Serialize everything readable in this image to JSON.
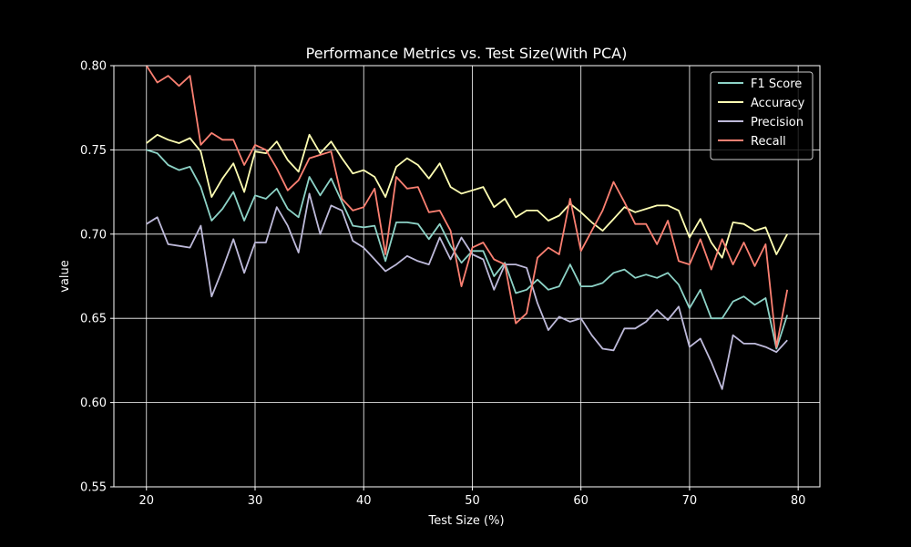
{
  "chart_data": {
    "type": "line",
    "title": "Performance Metrics vs. Test Size(With PCA)",
    "xlabel": "Test Size (%)",
    "ylabel": "value",
    "xlim": [
      17,
      82
    ],
    "ylim": [
      0.55,
      0.8
    ],
    "x_ticks": [
      20,
      30,
      40,
      50,
      60,
      70,
      80
    ],
    "y_ticks": [
      0.55,
      0.6,
      0.65,
      0.7,
      0.75,
      0.8
    ],
    "x_tick_labels": [
      "20",
      "30",
      "40",
      "50",
      "60",
      "70",
      "80"
    ],
    "y_tick_labels": [
      "0.55",
      "0.60",
      "0.65",
      "0.70",
      "0.75",
      "0.80"
    ],
    "grid": true,
    "legend_position": "top-right",
    "x": [
      20,
      21,
      22,
      23,
      24,
      25,
      26,
      27,
      28,
      29,
      30,
      31,
      32,
      33,
      34,
      35,
      36,
      37,
      38,
      39,
      40,
      41,
      42,
      43,
      44,
      45,
      46,
      47,
      48,
      49,
      50,
      51,
      52,
      53,
      54,
      55,
      56,
      57,
      58,
      59,
      60,
      61,
      62,
      63,
      64,
      65,
      66,
      67,
      68,
      69,
      70,
      71,
      72,
      73,
      74,
      75,
      76,
      77,
      78,
      79
    ],
    "series": [
      {
        "name": "F1 Score",
        "color": "#8dd3c7",
        "values": [
          0.75,
          0.748,
          0.741,
          0.738,
          0.74,
          0.728,
          0.708,
          0.715,
          0.725,
          0.708,
          0.723,
          0.721,
          0.727,
          0.715,
          0.71,
          0.734,
          0.723,
          0.733,
          0.719,
          0.705,
          0.704,
          0.705,
          0.684,
          0.707,
          0.707,
          0.706,
          0.697,
          0.706,
          0.693,
          0.683,
          0.69,
          0.69,
          0.675,
          0.683,
          0.665,
          0.667,
          0.673,
          0.667,
          0.669,
          0.682,
          0.669,
          0.669,
          0.671,
          0.677,
          0.679,
          0.674,
          0.676,
          0.674,
          0.677,
          0.67,
          0.656,
          0.667,
          0.65,
          0.65,
          0.66,
          0.663,
          0.658,
          0.662,
          0.632,
          0.652
        ]
      },
      {
        "name": "Accuracy",
        "color": "#ffffb3",
        "values": [
          0.754,
          0.759,
          0.756,
          0.754,
          0.757,
          0.749,
          0.722,
          0.733,
          0.742,
          0.725,
          0.749,
          0.748,
          0.755,
          0.744,
          0.737,
          0.759,
          0.748,
          0.755,
          0.745,
          0.736,
          0.738,
          0.734,
          0.722,
          0.74,
          0.745,
          0.741,
          0.733,
          0.742,
          0.728,
          0.724,
          0.726,
          0.728,
          0.716,
          0.721,
          0.71,
          0.714,
          0.714,
          0.708,
          0.711,
          0.718,
          0.713,
          0.707,
          0.702,
          0.709,
          0.716,
          0.713,
          0.715,
          0.717,
          0.717,
          0.714,
          0.698,
          0.709,
          0.695,
          0.686,
          0.707,
          0.706,
          0.702,
          0.704,
          0.688,
          0.7
        ]
      },
      {
        "name": "Precision",
        "color": "#bebada",
        "values": [
          0.706,
          0.71,
          0.694,
          0.693,
          0.692,
          0.705,
          0.663,
          0.679,
          0.697,
          0.677,
          0.695,
          0.695,
          0.716,
          0.705,
          0.689,
          0.724,
          0.7,
          0.717,
          0.714,
          0.696,
          0.692,
          0.685,
          0.678,
          0.682,
          0.687,
          0.684,
          0.682,
          0.698,
          0.685,
          0.698,
          0.688,
          0.685,
          0.667,
          0.682,
          0.682,
          0.68,
          0.659,
          0.643,
          0.651,
          0.648,
          0.65,
          0.64,
          0.632,
          0.631,
          0.644,
          0.644,
          0.648,
          0.655,
          0.649,
          0.657,
          0.633,
          0.638,
          0.624,
          0.608,
          0.64,
          0.635,
          0.635,
          0.633,
          0.63,
          0.637
        ]
      },
      {
        "name": "Recall",
        "color": "#fb8072",
        "values": [
          0.8,
          0.79,
          0.794,
          0.788,
          0.794,
          0.753,
          0.76,
          0.756,
          0.756,
          0.741,
          0.753,
          0.75,
          0.739,
          0.726,
          0.732,
          0.745,
          0.747,
          0.749,
          0.721,
          0.714,
          0.716,
          0.727,
          0.688,
          0.734,
          0.727,
          0.728,
          0.713,
          0.714,
          0.702,
          0.669,
          0.692,
          0.695,
          0.685,
          0.682,
          0.647,
          0.653,
          0.686,
          0.692,
          0.688,
          0.721,
          0.69,
          0.702,
          0.714,
          0.731,
          0.719,
          0.706,
          0.706,
          0.694,
          0.708,
          0.684,
          0.682,
          0.697,
          0.679,
          0.697,
          0.682,
          0.695,
          0.681,
          0.694,
          0.633,
          0.667
        ]
      }
    ]
  }
}
